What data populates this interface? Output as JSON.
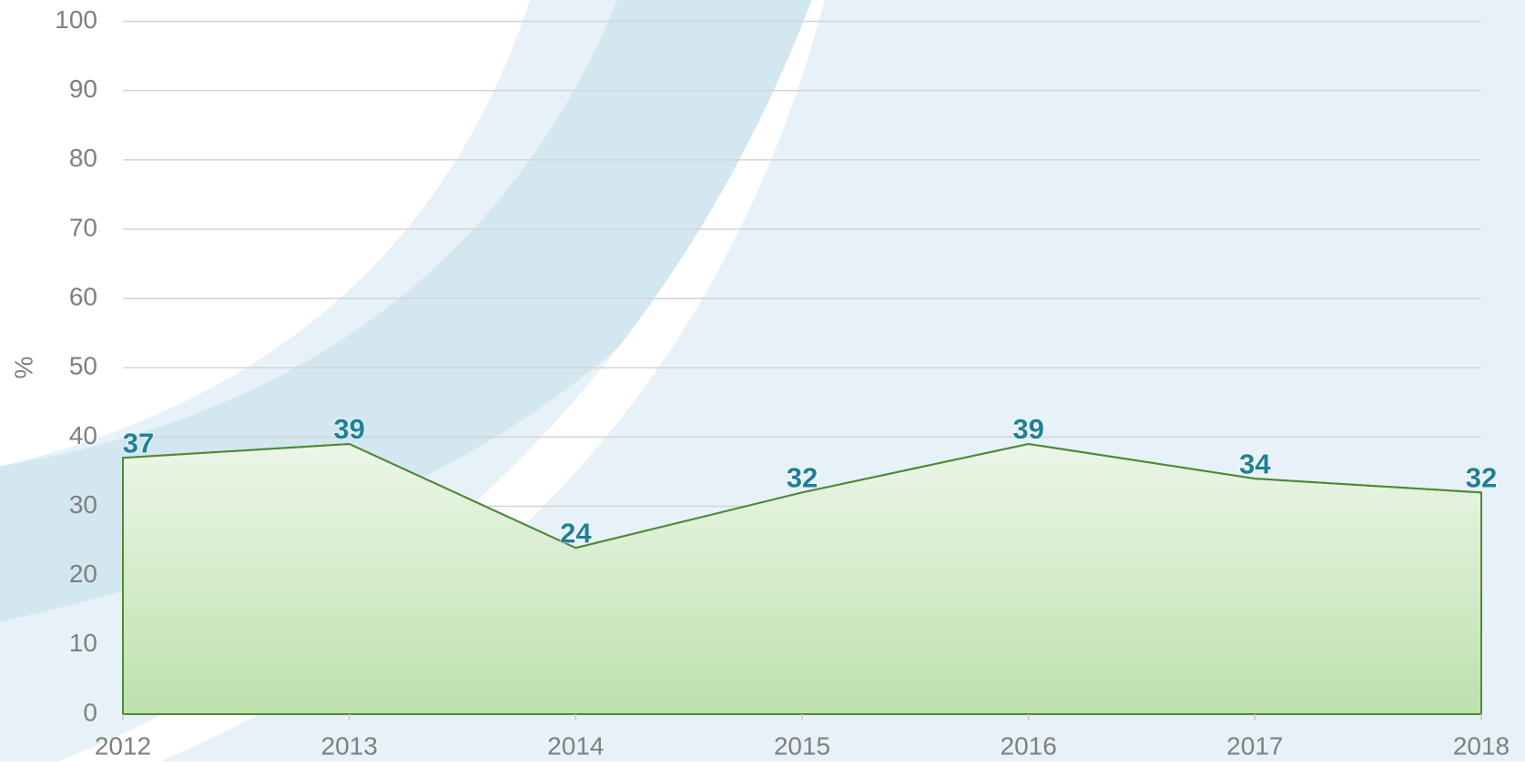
{
  "chart_data": {
    "type": "area",
    "y_label": "%",
    "categories": [
      "2012",
      "2013",
      "2014",
      "2015",
      "2016",
      "2017",
      "2018"
    ],
    "values": [
      37,
      39,
      24,
      32,
      39,
      34,
      32
    ],
    "color": "#4e8a35",
    "ylim": [
      0,
      100
    ],
    "yticks": [
      0,
      10,
      20,
      30,
      40,
      50,
      60,
      70,
      80,
      90,
      100
    ],
    "grid": true
  }
}
